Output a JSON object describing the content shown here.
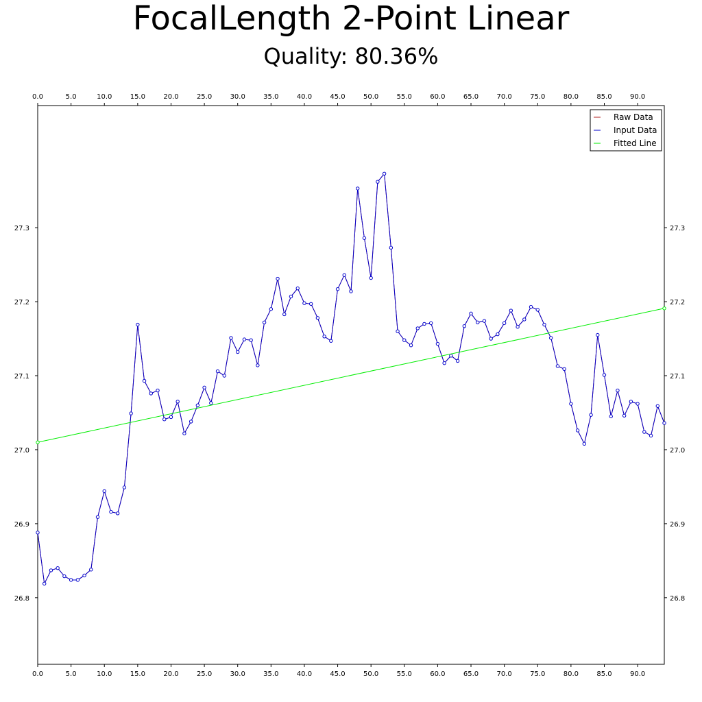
{
  "chart_data": {
    "type": "line",
    "title": "FocalLength 2-Point Linear",
    "subtitle": "Quality: 80.36%",
    "xlim": [
      0,
      94
    ],
    "ylim": [
      26.71,
      27.465
    ],
    "x_ticks": [
      "0.0",
      "5.0",
      "10.0",
      "15.0",
      "20.0",
      "25.0",
      "30.0",
      "35.0",
      "40.0",
      "45.0",
      "50.0",
      "55.0",
      "60.0",
      "65.0",
      "70.0",
      "75.0",
      "80.0",
      "85.0",
      "90.0"
    ],
    "y_ticks": [
      "26.8",
      "26.9",
      "27.0",
      "27.1",
      "27.2",
      "27.3"
    ],
    "grid": false,
    "legend": "top-right",
    "series": [
      {
        "name": "Raw Data",
        "color": "#b22222",
        "values": [
          26.888,
          26.819,
          26.837,
          26.84,
          26.829,
          26.824,
          26.824,
          26.83,
          26.838,
          26.909,
          26.944,
          26.916,
          26.914,
          26.949,
          27.049,
          27.169,
          27.093,
          27.076,
          27.08,
          27.041,
          27.044,
          27.065,
          27.022,
          27.038,
          27.06,
          27.084,
          27.063,
          27.106,
          27.1,
          27.151,
          27.132,
          27.149,
          27.148,
          27.114,
          27.172,
          27.19,
          27.231,
          27.183,
          27.207,
          27.218,
          27.198,
          27.197,
          27.178,
          27.153,
          27.147,
          27.217,
          27.236,
          27.214,
          27.353,
          27.286,
          27.232,
          27.362,
          27.373,
          27.273,
          27.16,
          27.148,
          27.141,
          27.164,
          27.17,
          27.171,
          27.143,
          27.117,
          27.127,
          27.12,
          27.167,
          27.184,
          27.172,
          27.174,
          27.15,
          27.156,
          27.171,
          27.188,
          27.166,
          27.176,
          27.193,
          27.189,
          27.169,
          27.151,
          27.113,
          27.109,
          27.062,
          27.026,
          27.008,
          27.047,
          27.155,
          27.101,
          27.045,
          27.08,
          27.046,
          27.065,
          27.062,
          27.024,
          27.019,
          27.059,
          27.036
        ]
      },
      {
        "name": "Input Data",
        "color": "#0000cd",
        "values": [
          26.888,
          26.819,
          26.837,
          26.84,
          26.829,
          26.824,
          26.824,
          26.83,
          26.838,
          26.909,
          26.944,
          26.916,
          26.914,
          26.949,
          27.049,
          27.169,
          27.093,
          27.076,
          27.08,
          27.041,
          27.044,
          27.065,
          27.022,
          27.038,
          27.06,
          27.084,
          27.063,
          27.106,
          27.1,
          27.151,
          27.132,
          27.149,
          27.148,
          27.114,
          27.172,
          27.19,
          27.231,
          27.183,
          27.207,
          27.218,
          27.198,
          27.197,
          27.178,
          27.153,
          27.147,
          27.217,
          27.236,
          27.214,
          27.353,
          27.286,
          27.232,
          27.362,
          27.373,
          27.273,
          27.16,
          27.148,
          27.141,
          27.164,
          27.17,
          27.171,
          27.143,
          27.117,
          27.127,
          27.12,
          27.167,
          27.184,
          27.172,
          27.174,
          27.15,
          27.156,
          27.171,
          27.188,
          27.166,
          27.176,
          27.193,
          27.189,
          27.169,
          27.151,
          27.113,
          27.109,
          27.062,
          27.026,
          27.008,
          27.047,
          27.155,
          27.101,
          27.045,
          27.08,
          27.046,
          27.065,
          27.062,
          27.024,
          27.019,
          27.059,
          27.036
        ]
      },
      {
        "name": "Fitted Line",
        "color": "#00ee00",
        "x": [
          0,
          94
        ],
        "values": [
          27.01,
          27.191
        ]
      }
    ]
  }
}
